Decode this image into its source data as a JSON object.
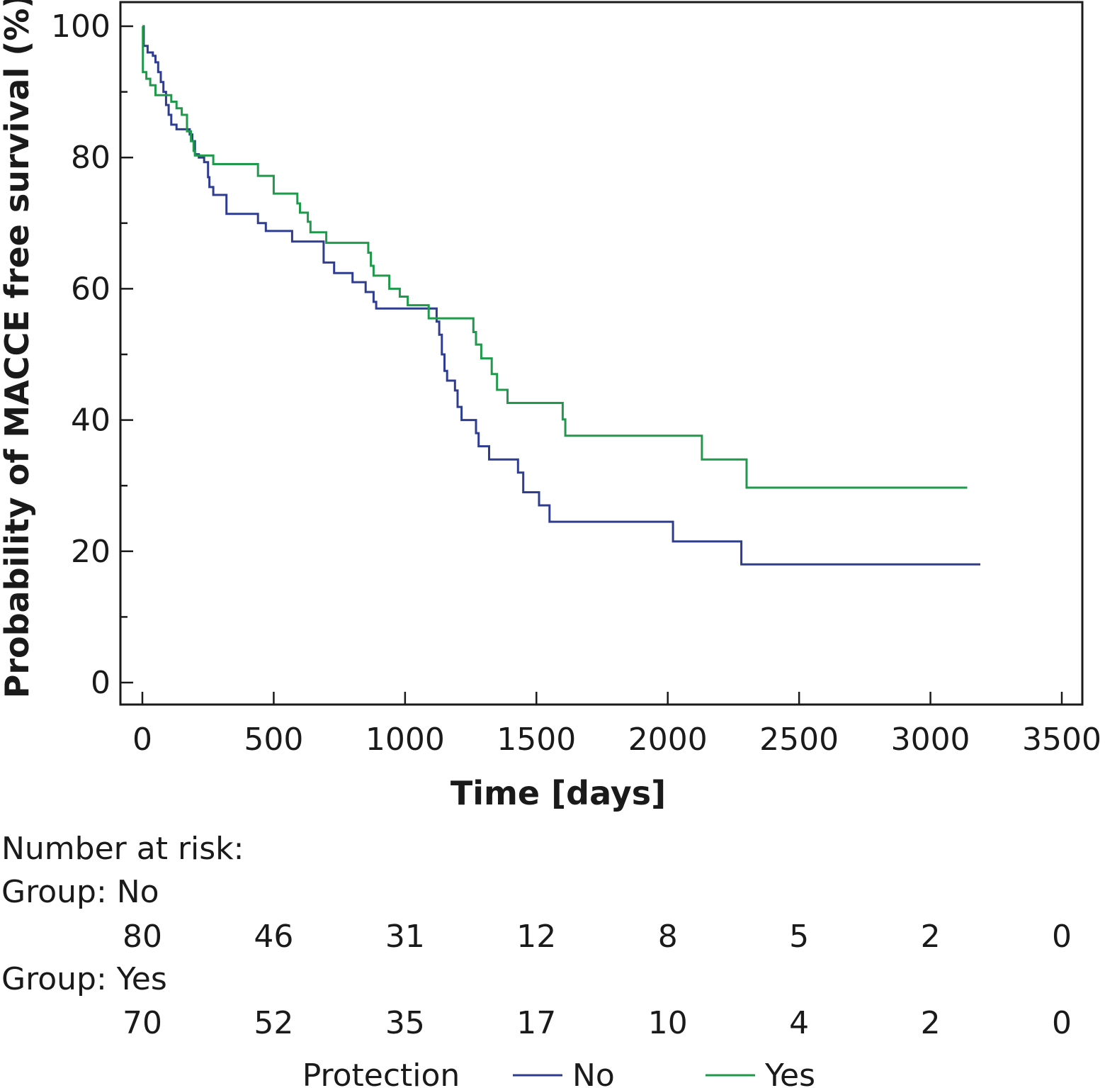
{
  "chart_data": {
    "type": "line",
    "subtype": "kaplan-meier step",
    "ylabel": "Probability of MACCE free survival (%)",
    "xlabel": "Time [days]",
    "xlim": [
      0,
      3500
    ],
    "ylim": [
      0,
      100
    ],
    "x_ticks": [
      "0",
      "500",
      "1000",
      "1500",
      "2000",
      "2500",
      "3000",
      "3500"
    ],
    "y_ticks": [
      "0",
      "20",
      "40",
      "60",
      "80",
      "100"
    ],
    "grid": false,
    "legend": {
      "title": "Protection",
      "placement": "bottom",
      "entries": [
        "No",
        "Yes"
      ]
    },
    "series": [
      {
        "name": "No",
        "color": "#2e3d8f",
        "steps": [
          [
            0,
            100
          ],
          [
            5,
            97
          ],
          [
            20,
            96
          ],
          [
            40,
            95.5
          ],
          [
            50,
            94.5
          ],
          [
            60,
            93
          ],
          [
            70,
            91.5
          ],
          [
            80,
            90
          ],
          [
            90,
            88
          ],
          [
            100,
            86.5
          ],
          [
            110,
            85
          ],
          [
            130,
            84.3
          ],
          [
            180,
            83.5
          ],
          [
            190,
            82.5
          ],
          [
            200,
            80.5
          ],
          [
            215,
            80
          ],
          [
            235,
            79.3
          ],
          [
            250,
            77
          ],
          [
            255,
            75.5
          ],
          [
            270,
            74.3
          ],
          [
            320,
            71.4
          ],
          [
            440,
            70
          ],
          [
            470,
            68.8
          ],
          [
            570,
            67.2
          ],
          [
            690,
            64
          ],
          [
            730,
            62.4
          ],
          [
            800,
            61
          ],
          [
            850,
            59.5
          ],
          [
            880,
            58
          ],
          [
            890,
            57
          ],
          [
            1120,
            55
          ],
          [
            1130,
            53
          ],
          [
            1140,
            50
          ],
          [
            1150,
            47.5
          ],
          [
            1160,
            46
          ],
          [
            1190,
            44.5
          ],
          [
            1200,
            42
          ],
          [
            1215,
            40
          ],
          [
            1270,
            38
          ],
          [
            1280,
            36
          ],
          [
            1320,
            34
          ],
          [
            1430,
            32
          ],
          [
            1450,
            29
          ],
          [
            1510,
            27
          ],
          [
            1550,
            24.5
          ],
          [
            2020,
            21.5
          ],
          [
            2280,
            18
          ],
          [
            3190,
            18
          ]
        ]
      },
      {
        "name": "Yes",
        "color": "#1f9a4b",
        "steps": [
          [
            0,
            100
          ],
          [
            2,
            93
          ],
          [
            15,
            92
          ],
          [
            30,
            91
          ],
          [
            50,
            89.5
          ],
          [
            110,
            88.5
          ],
          [
            130,
            87.5
          ],
          [
            150,
            86.5
          ],
          [
            170,
            84
          ],
          [
            185,
            82.5
          ],
          [
            195,
            81
          ],
          [
            200,
            80.3
          ],
          [
            270,
            79
          ],
          [
            440,
            77.2
          ],
          [
            500,
            74.5
          ],
          [
            590,
            73
          ],
          [
            600,
            71.6
          ],
          [
            630,
            70.2
          ],
          [
            640,
            68.6
          ],
          [
            700,
            67
          ],
          [
            860,
            65.5
          ],
          [
            870,
            63.5
          ],
          [
            880,
            62
          ],
          [
            940,
            60
          ],
          [
            980,
            58.8
          ],
          [
            1010,
            57.5
          ],
          [
            1090,
            55.5
          ],
          [
            1260,
            53.4
          ],
          [
            1270,
            51.5
          ],
          [
            1290,
            49.4
          ],
          [
            1330,
            47
          ],
          [
            1350,
            44.6
          ],
          [
            1390,
            42.6
          ],
          [
            1600,
            40.1
          ],
          [
            1610,
            37.6
          ],
          [
            2130,
            34
          ],
          [
            2300,
            29.7
          ],
          [
            3140,
            29.7
          ]
        ]
      }
    ],
    "number_at_risk": {
      "heading": "Number at risk:",
      "groups": [
        {
          "label": "Group: No",
          "values": [
            "80",
            "46",
            "31",
            "12",
            "8",
            "5",
            "2",
            "0"
          ]
        },
        {
          "label": "Group: Yes",
          "values": [
            "70",
            "52",
            "35",
            "17",
            "10",
            "4",
            "2",
            "0"
          ]
        }
      ]
    }
  }
}
